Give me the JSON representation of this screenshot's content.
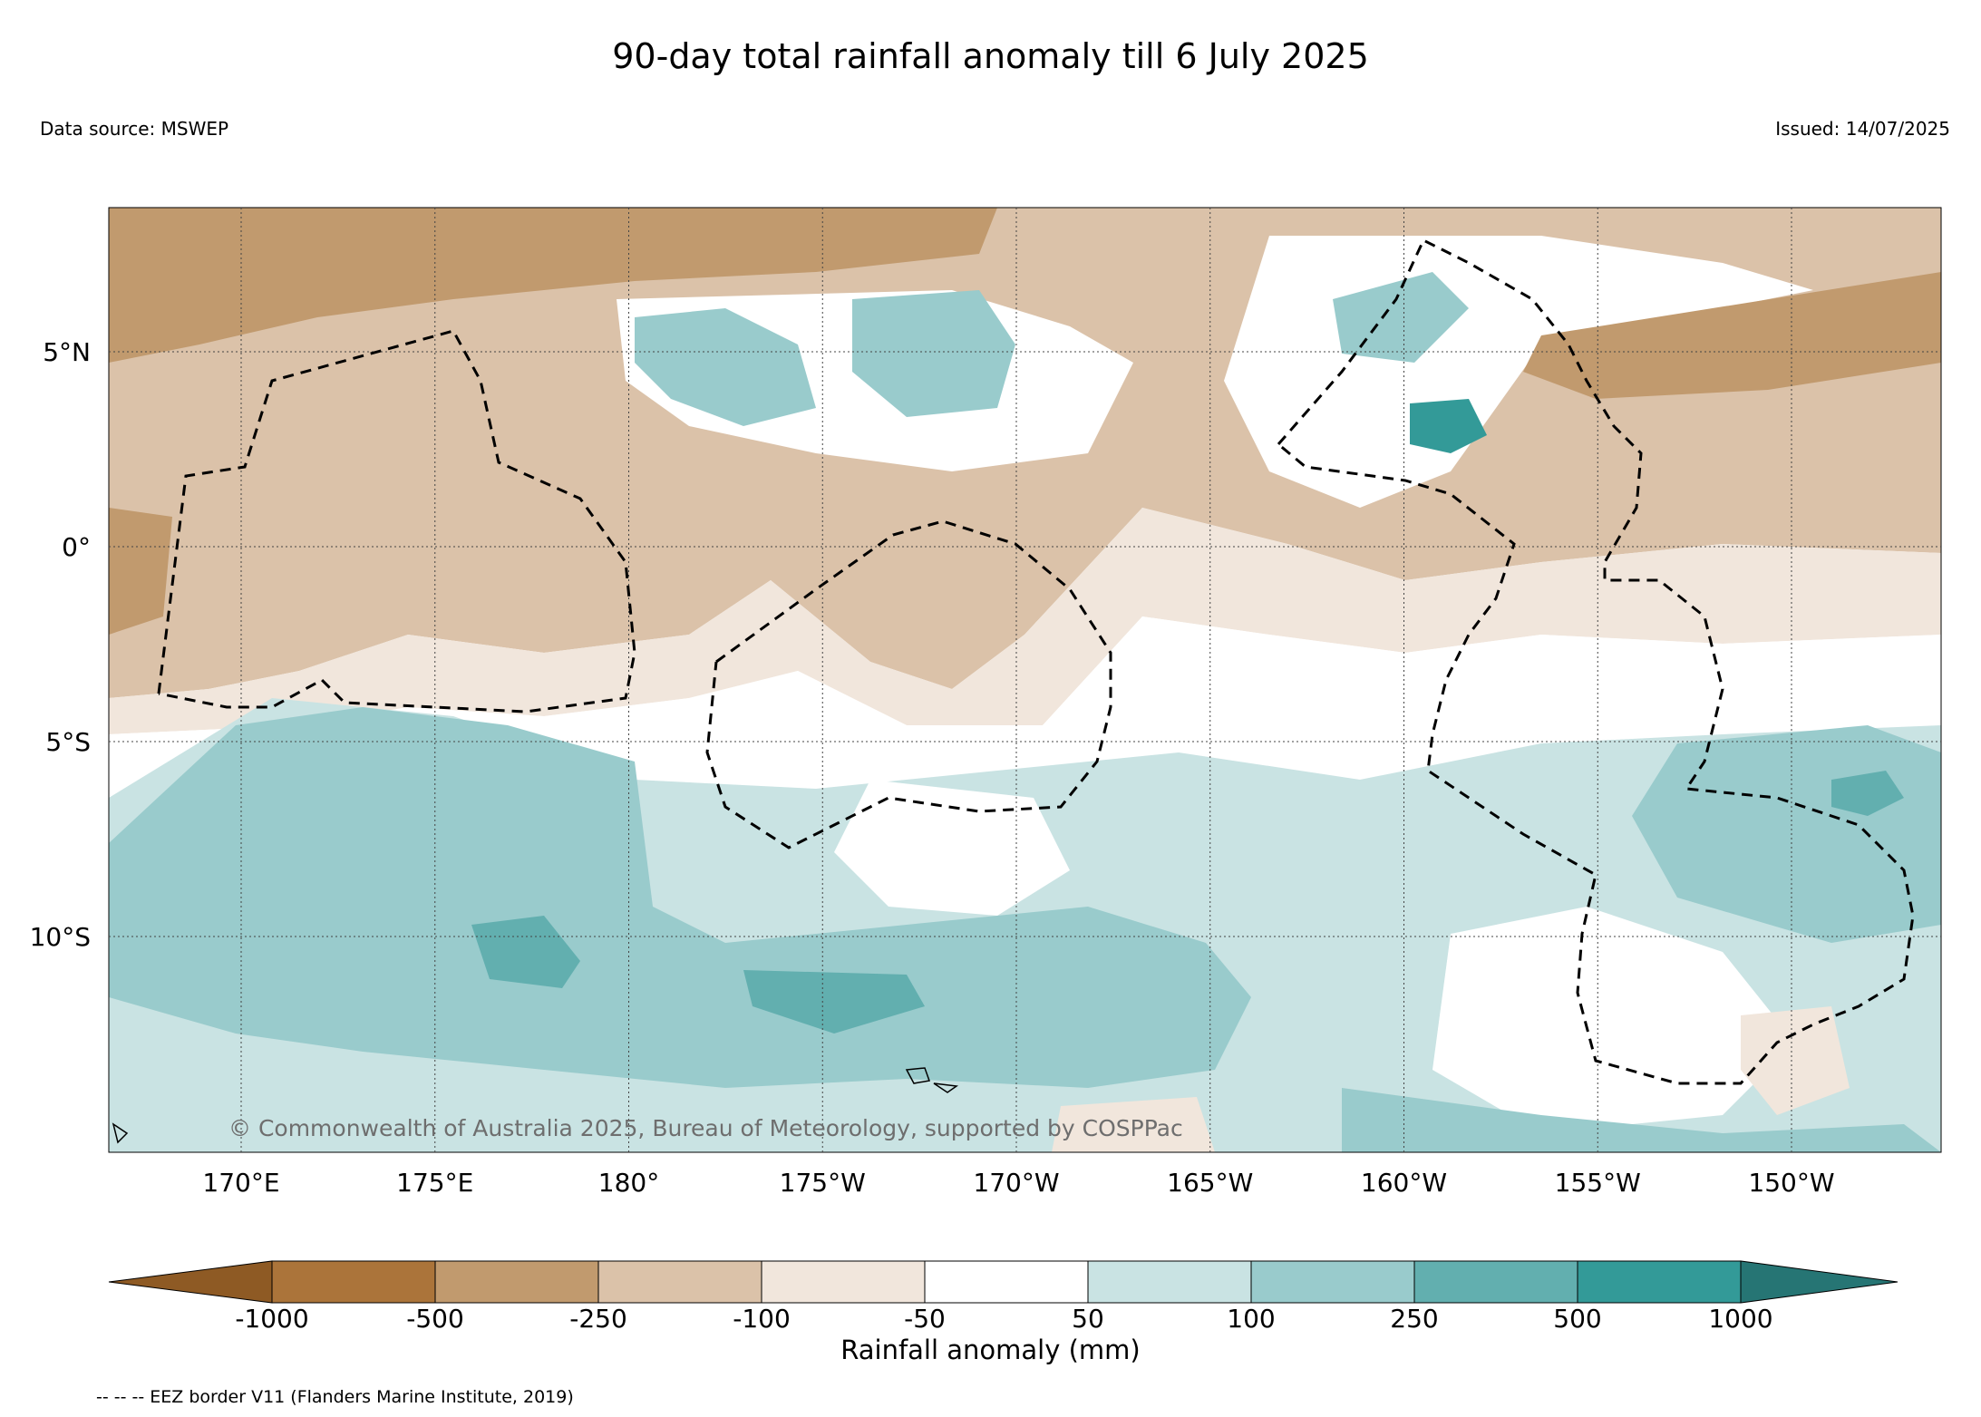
{
  "title": "90-day total rainfall anomaly till 6 July 2025",
  "data_source": "Data source: MSWEP",
  "issued": "Issued: 14/07/2025",
  "copyright": "© Commonwealth of Australia 2025, Bureau of Meteorology, supported by COSPPac",
  "lat_ticks": [
    {
      "lat": 5,
      "label": "5°N"
    },
    {
      "lat": 0,
      "label": "0°"
    },
    {
      "lat": -5,
      "label": "5°S"
    },
    {
      "lat": -10,
      "label": "10°S"
    }
  ],
  "lon_ticks": [
    {
      "lon": 170,
      "label": "170°E"
    },
    {
      "lon": 175,
      "label": "175°E"
    },
    {
      "lon": 180,
      "label": "180°"
    },
    {
      "lon": 185,
      "label": "175°W"
    },
    {
      "lon": 190,
      "label": "170°W"
    },
    {
      "lon": 195,
      "label": "165°W"
    },
    {
      "lon": 200,
      "label": "160°W"
    },
    {
      "lon": 205,
      "label": "155°W"
    },
    {
      "lon": 210,
      "label": "150°W"
    }
  ],
  "colorbar": {
    "title": "Rainfall anomaly (mm)",
    "tick_labels": [
      "-1000",
      "-500",
      "-250",
      "-100",
      "-50",
      "50",
      "100",
      "250",
      "500",
      "1000"
    ],
    "colors": [
      "#8e5a24",
      "#ab743a",
      "#c19a6e",
      "#dbc2a9",
      "#f1e6dc",
      "#ffffff",
      "#c9e3e3",
      "#99cbcc",
      "#62afaf",
      "#339a98",
      "#267574"
    ]
  },
  "legend_note": "-- -- -- EEZ border V11 (Flanders Marine Institute, 2019)"
}
